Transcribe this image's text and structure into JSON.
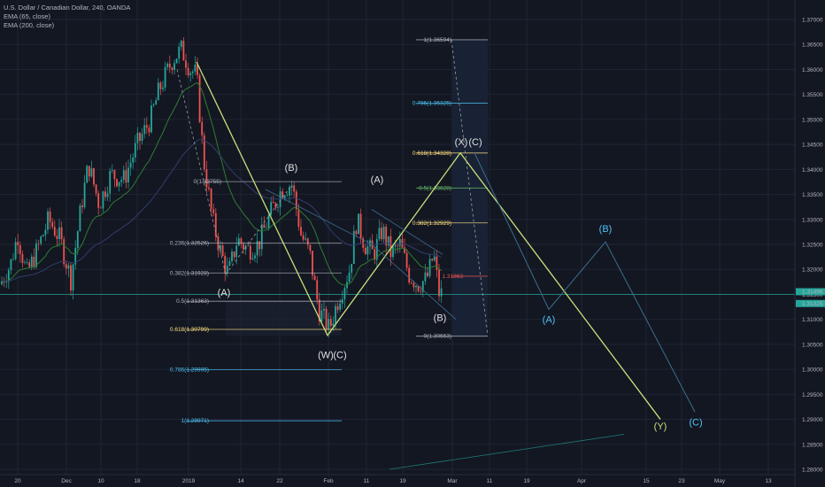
{
  "legend": {
    "symbol": "U.S. Dollar / Canadian Dollar, 240, OANDA",
    "ema65": "EMA (65, close)",
    "ema200": "EMA (200, close)"
  },
  "colors": {
    "background": "#131722",
    "grid": "#1f2433",
    "candle_up": "#26a69a",
    "candle_down": "#ef5350",
    "ema65": "#2e7d32",
    "ema200": "#2f3e6b",
    "wave_line": "#c8e07a",
    "projection_line": "#3c6e8f",
    "hline": "#26a69a",
    "text": "#b2b5be"
  },
  "chart_data": {
    "type": "candlestick",
    "title": "U.S. Dollar / Canadian Dollar, 240, OANDA",
    "y_axis": {
      "min": 1.28,
      "max": 1.37,
      "ticks": [
        "1.37000",
        "1.36500",
        "1.36000",
        "1.35500",
        "1.35000",
        "1.34500",
        "1.34000",
        "1.33500",
        "1.33000",
        "1.32500",
        "1.32000",
        "1.31500",
        "1.31000",
        "1.30500",
        "1.30000",
        "1.29500",
        "1.29000",
        "1.28500",
        "1.28000"
      ],
      "position": "right"
    },
    "x_axis": {
      "ticks": [
        "20",
        "Dec",
        "10",
        "18",
        "2019",
        "14",
        "22",
        "Feb",
        "11",
        "19",
        "Mar",
        "11",
        "19",
        "Apr",
        "15",
        "23",
        "May",
        "13"
      ]
    },
    "price_tags": [
      "1.31496",
      "1.31325"
    ],
    "indicators": [
      "EMA (65, close)",
      "EMA (200, close)"
    ],
    "fib_levels": [
      {
        "label": "1(1.36594)",
        "value": 1.36594,
        "color": "#b2b5be"
      },
      {
        "label": "0.786(1.35325)",
        "value": 1.35325,
        "color": "#4fc3f7"
      },
      {
        "label": "0.618(1.34328)",
        "value": 1.34328,
        "color": "#ffe082"
      },
      {
        "label": "0.5(1.33628)",
        "value": 1.33628,
        "color": "#66bb6a"
      },
      {
        "label": "0.382(1.32929)",
        "value": 1.32929,
        "color": "#ffe082"
      },
      {
        "label": "0(1.33755)",
        "value": 1.33755,
        "color": "#b2b5be"
      },
      {
        "label": "0.236(1.32526)",
        "value": 1.32526,
        "color": "#b2b5be"
      },
      {
        "label": "0.382(1.31928)",
        "value": 1.31928,
        "color": "#b2b5be"
      },
      {
        "label": "0.5(1.31363)",
        "value": 1.31363,
        "color": "#b2b5be"
      },
      {
        "label": "0.618(1.30799)",
        "value": 1.30799,
        "color": "#ffe082"
      },
      {
        "label": "0.786(1.29995)",
        "value": 1.29995,
        "color": "#4fc3f7"
      },
      {
        "label": "1(1.28971)",
        "value": 1.28971,
        "color": "#4fc3f7"
      },
      {
        "label": "0(1.30663)",
        "value": 1.30663,
        "color": "#b2b5be"
      },
      {
        "label": "1.31863",
        "value": 1.31863,
        "color": "#ef5350"
      }
    ],
    "wave_labels": [
      "(B)",
      "(A)",
      "(W)",
      "(C)",
      "(A)",
      "(B)",
      "(X)",
      "(C)",
      "(A)",
      "(B)",
      "(Y)",
      "(C)"
    ]
  }
}
